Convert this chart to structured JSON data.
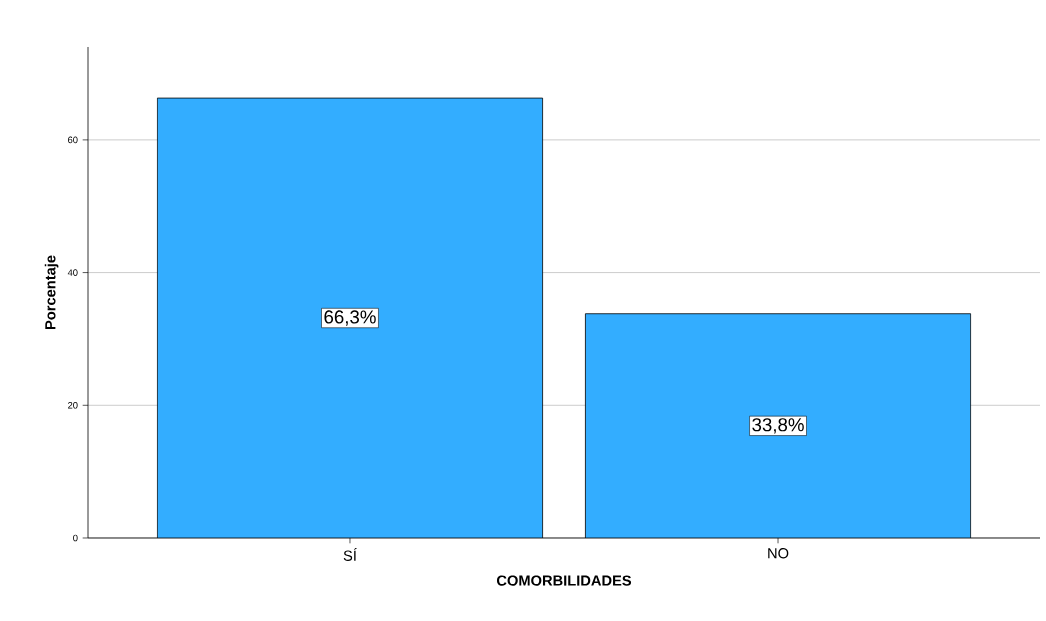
{
  "chart_data": {
    "type": "bar",
    "xlabel": "COMORBILIDADES",
    "ylabel": "Porcentaje",
    "categories": [
      "SÍ",
      "NO"
    ],
    "values": [
      66.3,
      33.8
    ],
    "value_labels": [
      "66,3%",
      "33,8%"
    ],
    "color": "#33adff",
    "ylim": [
      0,
      74
    ],
    "yticks": [
      0,
      20,
      40,
      60
    ],
    "grid": "y"
  }
}
